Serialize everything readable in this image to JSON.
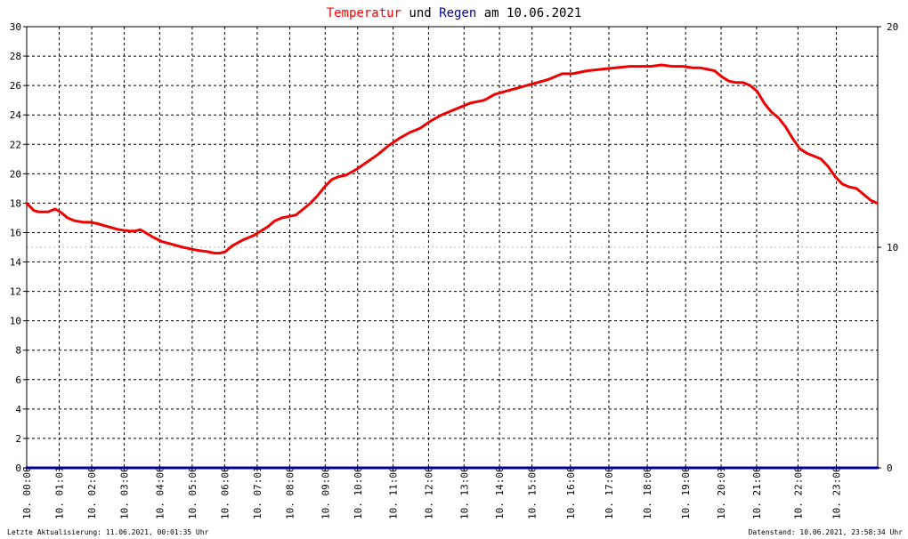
{
  "title": {
    "part1": "Temperatur",
    "part2": " und ",
    "part3": "Regen",
    "part4": " am 10.06.2021"
  },
  "footer": {
    "left": "Letzte Aktualisierung: 11.06.2021, 00:01:35 Uhr",
    "right": "Datenstand: 10.06.2021, 23:58:34 Uhr"
  },
  "colors": {
    "temperature": "#ee0000",
    "rain": "#000099",
    "grid": "#000000",
    "dotted_ref": "#bbbbbb",
    "title_red": "#ff0000",
    "title_blue": "#000099"
  },
  "chart_data": {
    "type": "line",
    "title": "Temperatur und Regen am 10.06.2021",
    "xlabel": "",
    "ylabel": "",
    "xlim": [
      0,
      24
    ],
    "ylim": [
      0,
      30
    ],
    "y2lim": [
      0,
      20
    ],
    "grid": true,
    "y_ticks": [
      "0",
      "2",
      "4",
      "6",
      "8",
      "10",
      "12",
      "14",
      "16",
      "18",
      "20",
      "22",
      "24",
      "26",
      "28",
      "30"
    ],
    "y2_ticks": [
      "0",
      "10",
      "20"
    ],
    "x_ticks": [
      {
        "label": "10. 00:00",
        "h": 0.0
      },
      {
        "label": "10. 01:01",
        "h": 0.917
      },
      {
        "label": "10. 02:00",
        "h": 1.833
      },
      {
        "label": "10. 03:00",
        "h": 2.75
      },
      {
        "label": "10. 04:00",
        "h": 3.75
      },
      {
        "label": "10. 05:00",
        "h": 4.667
      },
      {
        "label": "10. 06:00",
        "h": 5.583
      },
      {
        "label": "10. 07:01",
        "h": 6.5
      },
      {
        "label": "10. 08:00",
        "h": 7.417
      },
      {
        "label": "10. 09:00",
        "h": 8.417
      },
      {
        "label": "10. 10:00",
        "h": 9.333
      },
      {
        "label": "10. 11:00",
        "h": 10.333
      },
      {
        "label": "10. 12:00",
        "h": 11.333
      },
      {
        "label": "10. 13:00",
        "h": 12.333
      },
      {
        "label": "10. 14:00",
        "h": 13.333
      },
      {
        "label": "10. 15:00",
        "h": 14.25
      },
      {
        "label": "10. 16:00",
        "h": 15.333
      },
      {
        "label": "10. 17:00",
        "h": 16.417
      },
      {
        "label": "10. 18:00",
        "h": 17.5
      },
      {
        "label": "10. 19:00",
        "h": 18.583
      },
      {
        "label": "10. 20:01",
        "h": 19.583
      },
      {
        "label": "10. 21:00",
        "h": 20.583
      },
      {
        "label": "10. 22:00",
        "h": 21.75
      },
      {
        "label": "10. 23:00",
        "h": 22.833
      }
    ],
    "series": [
      {
        "name": "Temperatur",
        "axis": "left",
        "x": [
          0.0,
          0.2,
          0.35,
          0.6,
          0.8,
          0.95,
          1.15,
          1.35,
          1.6,
          1.8,
          2.0,
          2.3,
          2.6,
          2.9,
          3.05,
          3.2,
          3.35,
          3.55,
          3.8,
          4.1,
          4.4,
          4.8,
          5.1,
          5.3,
          5.45,
          5.6,
          5.8,
          6.1,
          6.4,
          6.6,
          6.8,
          7.0,
          7.2,
          7.4,
          7.6,
          7.8,
          8.0,
          8.2,
          8.4,
          8.6,
          8.8,
          9.0,
          9.3,
          9.6,
          9.9,
          10.2,
          10.5,
          10.8,
          11.1,
          11.4,
          11.7,
          12.0,
          12.3,
          12.5,
          12.7,
          12.9,
          13.2,
          13.5,
          13.8,
          14.1,
          14.4,
          14.7,
          14.9,
          15.1,
          15.4,
          15.8,
          16.2,
          16.6,
          17.0,
          17.3,
          17.6,
          17.9,
          18.2,
          18.5,
          18.8,
          19.0,
          19.2,
          19.4,
          19.6,
          19.8,
          20.0,
          20.2,
          20.4,
          20.6,
          20.8,
          21.0,
          21.2,
          21.4,
          21.6,
          21.8,
          22.0,
          22.2,
          22.4,
          22.6,
          22.8,
          23.0,
          23.2,
          23.4,
          23.6,
          23.8,
          23.98
        ],
        "y": [
          18.0,
          17.5,
          17.4,
          17.4,
          17.6,
          17.4,
          17.0,
          16.8,
          16.7,
          16.7,
          16.6,
          16.4,
          16.2,
          16.1,
          16.1,
          16.2,
          16.0,
          15.7,
          15.4,
          15.2,
          15.0,
          14.8,
          14.7,
          14.6,
          14.6,
          14.7,
          15.1,
          15.5,
          15.8,
          16.1,
          16.4,
          16.8,
          17.0,
          17.1,
          17.2,
          17.6,
          18.0,
          18.5,
          19.1,
          19.6,
          19.8,
          19.9,
          20.3,
          20.8,
          21.3,
          21.9,
          22.4,
          22.8,
          23.1,
          23.6,
          24.0,
          24.3,
          24.6,
          24.8,
          24.9,
          25.0,
          25.4,
          25.6,
          25.8,
          26.0,
          26.2,
          26.4,
          26.6,
          26.8,
          26.8,
          27.0,
          27.1,
          27.2,
          27.3,
          27.3,
          27.3,
          27.4,
          27.3,
          27.3,
          27.2,
          27.2,
          27.1,
          27.0,
          26.6,
          26.3,
          26.2,
          26.2,
          26.0,
          25.6,
          24.8,
          24.2,
          23.8,
          23.2,
          22.4,
          21.7,
          21.4,
          21.2,
          21.0,
          20.5,
          19.8,
          19.3,
          19.1,
          19.0,
          18.6,
          18.2,
          18.0
        ]
      },
      {
        "name": "Regen",
        "axis": "right",
        "x": [
          0,
          24
        ],
        "y": [
          0,
          0
        ]
      }
    ]
  }
}
